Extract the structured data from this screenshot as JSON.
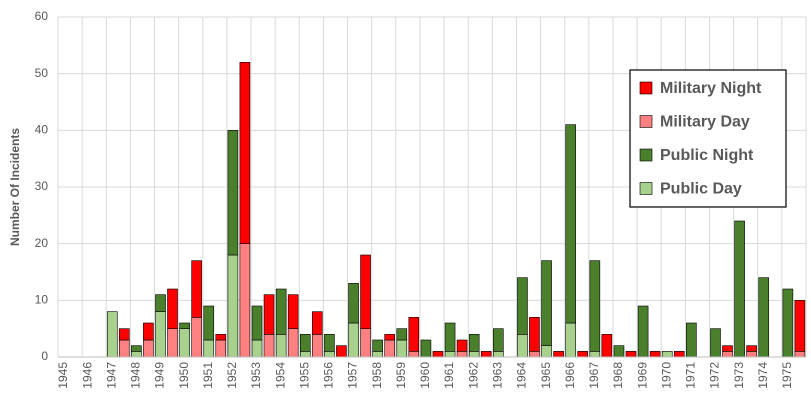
{
  "chart_data": {
    "type": "bar",
    "ylabel": "Number Of Incidents",
    "categories": [
      "1945",
      "1946",
      "1947",
      "1948",
      "1949",
      "1950",
      "1951",
      "1952",
      "1953",
      "1954",
      "1955",
      "1956",
      "1957",
      "1958",
      "1959",
      "1960",
      "1961",
      "1962",
      "1963",
      "1964",
      "1965",
      "1966",
      "1967",
      "1968",
      "1969",
      "1970",
      "1971",
      "1972",
      "1973",
      "1974",
      "1975"
    ],
    "series": [
      {
        "name": "Public Day",
        "color": "#a9d18e",
        "stack": 0,
        "values": [
          0,
          0,
          8,
          1,
          8,
          5,
          3,
          18,
          3,
          4,
          1,
          1,
          6,
          1,
          3,
          0,
          1,
          1,
          1,
          4,
          2,
          6,
          1,
          0,
          0,
          1,
          0,
          0,
          0,
          0,
          0
        ]
      },
      {
        "name": "Public Night",
        "color": "#4a7f2c",
        "stack": 0,
        "values": [
          0,
          0,
          0,
          1,
          3,
          1,
          6,
          22,
          6,
          8,
          3,
          3,
          7,
          2,
          2,
          3,
          5,
          3,
          4,
          10,
          15,
          35,
          16,
          2,
          9,
          0,
          6,
          5,
          24,
          14,
          12
        ]
      },
      {
        "name": "Military Day",
        "color": "#ff8080",
        "stack": 1,
        "values": [
          0,
          0,
          3,
          3,
          5,
          7,
          3,
          20,
          4,
          5,
          4,
          0,
          5,
          3,
          1,
          0,
          1,
          0,
          0,
          1,
          0,
          0,
          0,
          0,
          0,
          0,
          0,
          1,
          1,
          0,
          1
        ]
      },
      {
        "name": "Military Night",
        "color": "#ff0000",
        "stack": 1,
        "values": [
          0,
          0,
          2,
          3,
          7,
          10,
          1,
          32,
          7,
          6,
          4,
          2,
          13,
          1,
          6,
          1,
          2,
          1,
          0,
          6,
          1,
          1,
          4,
          1,
          1,
          1,
          0,
          1,
          1,
          0,
          9
        ]
      }
    ],
    "ylim": [
      0,
      60
    ],
    "yticks": [
      0,
      10,
      20,
      30,
      40,
      50,
      60
    ],
    "grid": true,
    "legend": "upper right"
  }
}
